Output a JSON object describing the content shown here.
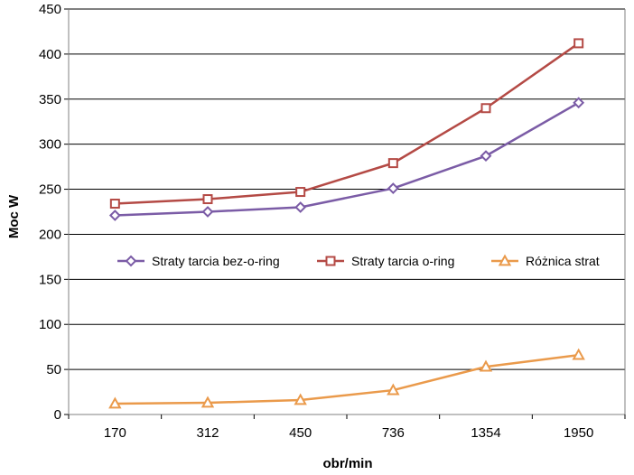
{
  "chart_data": {
    "type": "line",
    "categories": [
      "170",
      "312",
      "450",
      "736",
      "1354",
      "1950"
    ],
    "xlabel": "obr/min",
    "ylabel": "Moc W",
    "ylim": [
      0,
      450
    ],
    "yticks": [
      0,
      50,
      100,
      150,
      200,
      250,
      300,
      350,
      400,
      450
    ],
    "grid": true,
    "legend_position": "center",
    "series": [
      {
        "name": "Straty tarcia bez-o-ring",
        "color": "#7B5CA6",
        "marker": "diamond",
        "values": [
          221,
          225,
          230,
          251,
          287,
          346
        ]
      },
      {
        "name": "Straty tarcia o-ring",
        "color": "#B44A45",
        "marker": "square",
        "values": [
          234,
          239,
          247,
          279,
          340,
          412
        ]
      },
      {
        "name": "Różnica strat",
        "color": "#EA9A4B",
        "marker": "triangle",
        "values": [
          12,
          13,
          16,
          27,
          53,
          66
        ]
      }
    ]
  }
}
